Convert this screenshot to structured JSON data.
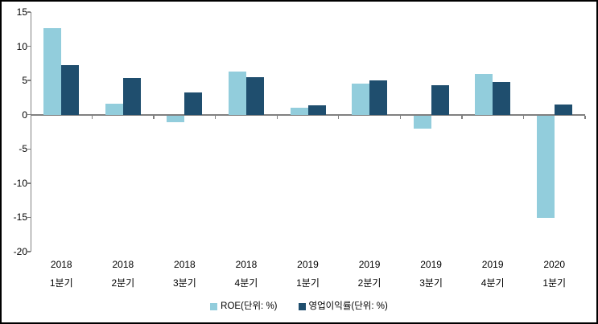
{
  "chart": {
    "background_color": "#FFFFFF",
    "frame_border_color": "#000000",
    "axis_line_color": "#808080",
    "tick_label_color": "#000000"
  },
  "chart_data": {
    "type": "bar",
    "title": "",
    "xlabel": "",
    "ylabel": "",
    "grid": false,
    "legend_position": "bottom",
    "ylim": [
      -20,
      15
    ],
    "ytick_step": 5,
    "yticks": [
      15,
      10,
      5,
      0,
      -5,
      -10,
      -15,
      -20
    ],
    "categories": [
      {
        "line1": "2018",
        "line2": "1분기"
      },
      {
        "line1": "2018",
        "line2": "2분기"
      },
      {
        "line1": "2018",
        "line2": "3분기"
      },
      {
        "line1": "2018",
        "line2": "4분기"
      },
      {
        "line1": "2019",
        "line2": "1분기"
      },
      {
        "line1": "2019",
        "line2": "2분기"
      },
      {
        "line1": "2019",
        "line2": "3분기"
      },
      {
        "line1": "2019",
        "line2": "4분기"
      },
      {
        "line1": "2020",
        "line2": "1분기"
      }
    ],
    "series": [
      {
        "name": "ROE(단위: %)",
        "color": "#92CDDC",
        "values": [
          12.7,
          1.6,
          -1.0,
          6.3,
          1.0,
          4.6,
          -1.9,
          5.9,
          -15.0
        ]
      },
      {
        "name": "영업이익률(단위: %)",
        "color": "#1F4E6E",
        "values": [
          7.3,
          5.4,
          3.2,
          5.5,
          1.4,
          5.0,
          4.3,
          4.8,
          1.5
        ]
      }
    ]
  }
}
